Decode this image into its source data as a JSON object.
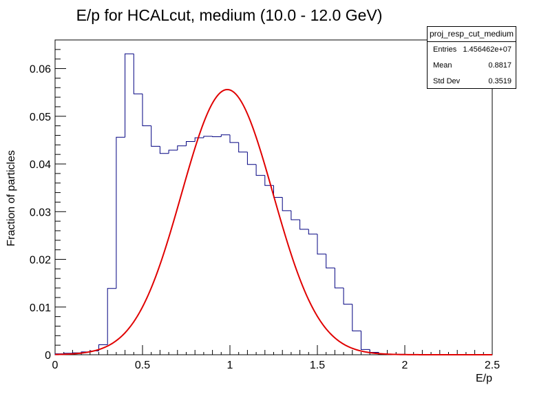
{
  "chart_data": {
    "type": "histogram",
    "title": "E/p for HCALcut, medium (10.0 - 12.0 GeV)",
    "xlabel": "E/p",
    "ylabel": "Fraction of particles",
    "xlim": [
      0,
      2.5
    ],
    "ylim": [
      0,
      0.066
    ],
    "bin_width": 0.05,
    "xticks": [
      0,
      0.5,
      1,
      1.5,
      2,
      2.5
    ],
    "xtick_labels": [
      "0",
      "0.5",
      "1",
      "1.5",
      "2",
      "2.5"
    ],
    "yticks": [
      0,
      0.01,
      0.02,
      0.03,
      0.04,
      0.05,
      0.06
    ],
    "ytick_labels": [
      "0",
      "0.01",
      "0.02",
      "0.03",
      "0.04",
      "0.05",
      "0.06"
    ],
    "histogram": {
      "color": "#000080",
      "bin_edges_start": 0,
      "values": [
        0.0002,
        0.0003,
        0.0004,
        0.0006,
        0.0008,
        0.0021,
        0.0139,
        0.0456,
        0.0631,
        0.0547,
        0.048,
        0.0437,
        0.0422,
        0.0429,
        0.0438,
        0.0447,
        0.0455,
        0.0458,
        0.0457,
        0.0461,
        0.0445,
        0.0425,
        0.0399,
        0.0376,
        0.0355,
        0.033,
        0.0302,
        0.0283,
        0.0263,
        0.0253,
        0.0211,
        0.0182,
        0.014,
        0.0106,
        0.005,
        0.0011,
        0.0005,
        0.0002,
        0.0001,
        0.0001,
        0.0,
        0.0,
        0.0,
        0.0,
        0.0,
        0.0,
        0.0,
        0.0,
        0.0,
        0.0
      ]
    },
    "fit": {
      "type": "gaussian",
      "color": "#e00000",
      "mean": 0.985,
      "sigma": 0.262,
      "amplitude": 0.0556,
      "x_range": [
        0,
        2.5
      ]
    },
    "stats": {
      "name": "proj_resp_cut_medium",
      "rows": [
        {
          "label": "Entries",
          "value": "1.456462e+07"
        },
        {
          "label": "Mean",
          "value": "0.8817"
        },
        {
          "label": "Std Dev",
          "value": "0.3519"
        }
      ]
    }
  }
}
